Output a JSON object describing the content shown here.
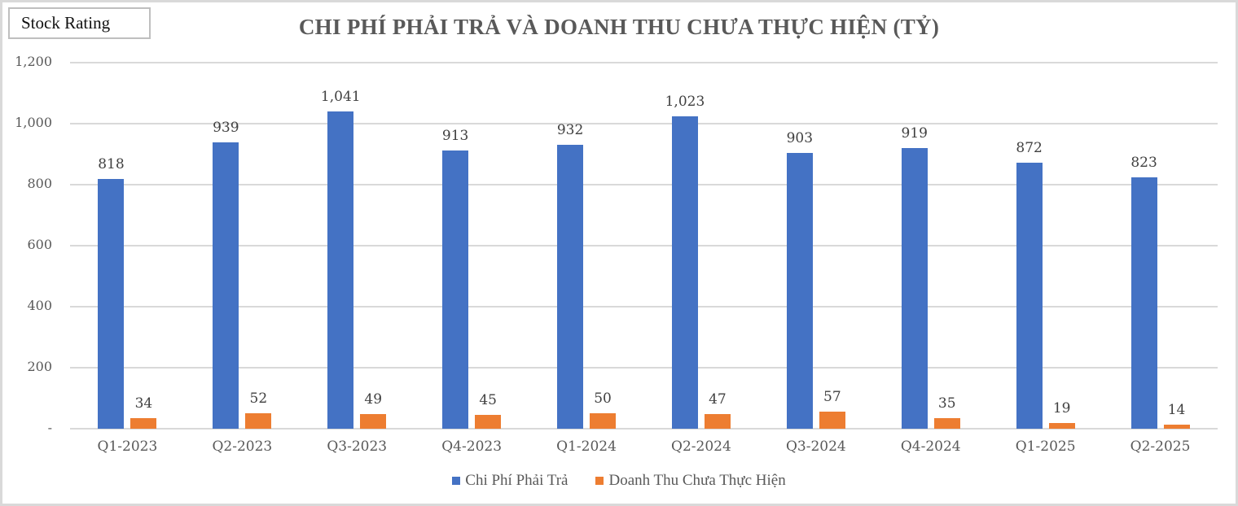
{
  "badge": {
    "label": "Stock Rating"
  },
  "chart_data": {
    "type": "bar",
    "title": "CHI PHÍ PHẢI TRẢ VÀ DOANH THU CHƯA THỰC HIỆN (TỶ)",
    "xlabel": "",
    "ylabel": "",
    "ylim": [
      0,
      1200
    ],
    "yticks": [
      0,
      200,
      400,
      600,
      800,
      1000,
      1200
    ],
    "ytick_labels": [
      "-",
      "200",
      "400",
      "600",
      "800",
      "1,000",
      "1,200"
    ],
    "grid": true,
    "legend_position": "bottom",
    "categories": [
      "Q1-2023",
      "Q2-2023",
      "Q3-2023",
      "Q4-2023",
      "Q1-2024",
      "Q2-2024",
      "Q3-2024",
      "Q4-2024",
      "Q1-2025",
      "Q2-2025"
    ],
    "series": [
      {
        "name": "Chi Phí Phải Trả",
        "color": "#4472c4",
        "values": [
          818,
          939,
          1041,
          913,
          932,
          1023,
          903,
          919,
          872,
          823
        ],
        "labels": [
          "818",
          "939",
          "1,041",
          "913",
          "932",
          "1,023",
          "903",
          "919",
          "872",
          "823"
        ]
      },
      {
        "name": "Doanh Thu Chưa Thực Hiện",
        "color": "#ed7d31",
        "values": [
          34,
          52,
          49,
          45,
          50,
          47,
          57,
          35,
          19,
          14
        ],
        "labels": [
          "34",
          "52",
          "49",
          "45",
          "50",
          "47",
          "57",
          "35",
          "19",
          "14"
        ]
      }
    ]
  }
}
